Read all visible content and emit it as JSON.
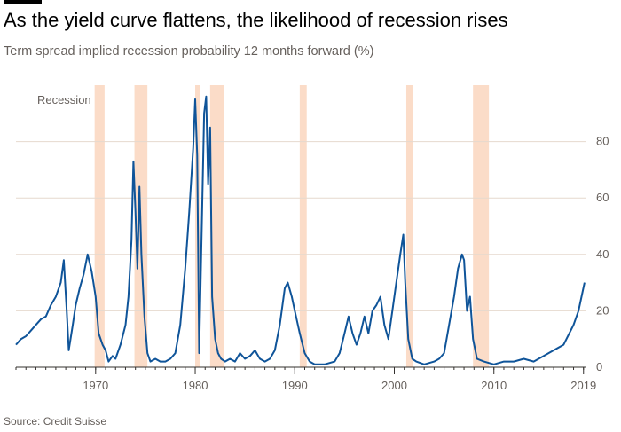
{
  "header": {
    "title": "As the yield curve flattens, the likelihood of recession rises",
    "subtitle": "Term spread implied recession probability 12 months forward (%)"
  },
  "footer": {
    "source": "Source: Credit Suisse"
  },
  "colors": {
    "line": "#0f5499",
    "recession": "#fbdcc8",
    "grid": "#e6d9ce",
    "text": "#66605c"
  },
  "chart_data": {
    "type": "line",
    "title": "As the yield curve flattens, the likelihood of recession rises",
    "subtitle": "Term spread implied recession probability 12 months forward (%)",
    "x_range": [
      1962.0,
      2019.2
    ],
    "ylim": [
      0,
      100
    ],
    "y_ticks": [
      0,
      20,
      40,
      60,
      80
    ],
    "x_ticks": [
      1970,
      1980,
      1990,
      2000,
      2010,
      2019
    ],
    "y_axis_position": "right",
    "grid": true,
    "annotation": "Recession",
    "recessions": [
      [
        1969.9,
        1970.9
      ],
      [
        1973.9,
        1975.2
      ],
      [
        1980.0,
        1980.5
      ],
      [
        1981.5,
        1982.9
      ],
      [
        1990.5,
        1991.2
      ],
      [
        2001.2,
        2001.9
      ],
      [
        2007.9,
        2009.5
      ]
    ],
    "series": [
      {
        "values": [
          [
            1962.0,
            8
          ],
          [
            1962.5,
            10
          ],
          [
            1963.0,
            11
          ],
          [
            1963.5,
            13
          ],
          [
            1964.0,
            15
          ],
          [
            1964.5,
            17
          ],
          [
            1965.0,
            18
          ],
          [
            1965.5,
            22
          ],
          [
            1966.0,
            25
          ],
          [
            1966.5,
            30
          ],
          [
            1966.8,
            38
          ],
          [
            1967.1,
            20
          ],
          [
            1967.3,
            6
          ],
          [
            1967.7,
            15
          ],
          [
            1968.0,
            22
          ],
          [
            1968.4,
            28
          ],
          [
            1968.8,
            33
          ],
          [
            1969.2,
            40
          ],
          [
            1969.6,
            34
          ],
          [
            1970.0,
            25
          ],
          [
            1970.3,
            12
          ],
          [
            1970.7,
            8
          ],
          [
            1971.0,
            6
          ],
          [
            1971.3,
            2
          ],
          [
            1971.7,
            4
          ],
          [
            1972.0,
            3
          ],
          [
            1972.5,
            8
          ],
          [
            1973.0,
            15
          ],
          [
            1973.3,
            25
          ],
          [
            1973.6,
            45
          ],
          [
            1973.8,
            73
          ],
          [
            1974.0,
            55
          ],
          [
            1974.2,
            35
          ],
          [
            1974.4,
            64
          ],
          [
            1974.6,
            40
          ],
          [
            1974.9,
            18
          ],
          [
            1975.2,
            5
          ],
          [
            1975.5,
            2
          ],
          [
            1976.0,
            3
          ],
          [
            1976.5,
            2
          ],
          [
            1977.0,
            2
          ],
          [
            1977.5,
            3
          ],
          [
            1978.0,
            5
          ],
          [
            1978.5,
            15
          ],
          [
            1979.0,
            35
          ],
          [
            1979.4,
            55
          ],
          [
            1979.8,
            78
          ],
          [
            1980.0,
            95
          ],
          [
            1980.2,
            75
          ],
          [
            1980.4,
            5
          ],
          [
            1980.6,
            40
          ],
          [
            1980.9,
            90
          ],
          [
            1981.1,
            96
          ],
          [
            1981.3,
            65
          ],
          [
            1981.5,
            85
          ],
          [
            1981.7,
            25
          ],
          [
            1982.0,
            10
          ],
          [
            1982.3,
            5
          ],
          [
            1982.6,
            3
          ],
          [
            1983.0,
            2
          ],
          [
            1983.5,
            3
          ],
          [
            1984.0,
            2
          ],
          [
            1984.5,
            5
          ],
          [
            1985.0,
            3
          ],
          [
            1985.5,
            4
          ],
          [
            1986.0,
            6
          ],
          [
            1986.5,
            3
          ],
          [
            1987.0,
            2
          ],
          [
            1987.5,
            3
          ],
          [
            1988.0,
            6
          ],
          [
            1988.5,
            15
          ],
          [
            1989.0,
            28
          ],
          [
            1989.3,
            30
          ],
          [
            1989.7,
            25
          ],
          [
            1990.0,
            20
          ],
          [
            1990.5,
            12
          ],
          [
            1991.0,
            5
          ],
          [
            1991.5,
            2
          ],
          [
            1992.0,
            1
          ],
          [
            1993.0,
            1
          ],
          [
            1994.0,
            2
          ],
          [
            1994.5,
            5
          ],
          [
            1995.0,
            12
          ],
          [
            1995.4,
            18
          ],
          [
            1995.8,
            12
          ],
          [
            1996.2,
            8
          ],
          [
            1996.6,
            12
          ],
          [
            1997.0,
            18
          ],
          [
            1997.4,
            12
          ],
          [
            1997.8,
            20
          ],
          [
            1998.2,
            22
          ],
          [
            1998.6,
            25
          ],
          [
            1999.0,
            15
          ],
          [
            1999.4,
            10
          ],
          [
            1999.8,
            20
          ],
          [
            2000.2,
            30
          ],
          [
            2000.6,
            40
          ],
          [
            2000.9,
            47
          ],
          [
            2001.1,
            30
          ],
          [
            2001.4,
            10
          ],
          [
            2001.8,
            3
          ],
          [
            2002.2,
            2
          ],
          [
            2003.0,
            1
          ],
          [
            2004.0,
            2
          ],
          [
            2004.5,
            3
          ],
          [
            2005.0,
            5
          ],
          [
            2005.5,
            15
          ],
          [
            2006.0,
            25
          ],
          [
            2006.4,
            35
          ],
          [
            2006.8,
            40
          ],
          [
            2007.0,
            38
          ],
          [
            2007.3,
            20
          ],
          [
            2007.6,
            25
          ],
          [
            2007.9,
            10
          ],
          [
            2008.3,
            3
          ],
          [
            2009.0,
            2
          ],
          [
            2010.0,
            1
          ],
          [
            2011.0,
            2
          ],
          [
            2012.0,
            2
          ],
          [
            2013.0,
            3
          ],
          [
            2014.0,
            2
          ],
          [
            2015.0,
            4
          ],
          [
            2016.0,
            6
          ],
          [
            2017.0,
            8
          ],
          [
            2018.0,
            15
          ],
          [
            2018.5,
            20
          ],
          [
            2018.8,
            25
          ],
          [
            2019.1,
            30
          ]
        ]
      }
    ]
  }
}
